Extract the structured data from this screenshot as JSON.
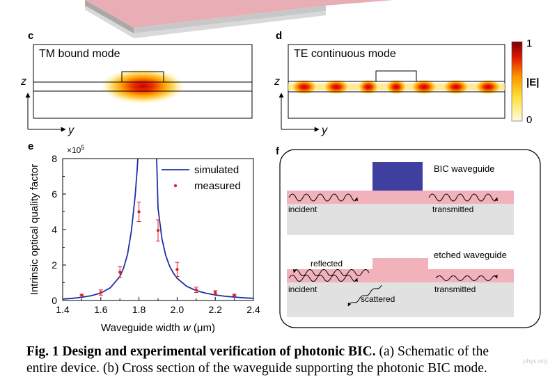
{
  "panel_c": {
    "letter": "c",
    "title": "TM bound mode",
    "z_label": "z",
    "y_label": "y"
  },
  "panel_d": {
    "letter": "d",
    "title": "TE continuous mode",
    "z_label": "z",
    "y_label": "y"
  },
  "colorbar": {
    "max_label": "1",
    "min_label": "0",
    "quantity": "|E|",
    "colors": [
      "#fffbe0",
      "#ffe03a",
      "#ff9a00",
      "#e01a00",
      "#7a0000"
    ]
  },
  "panel_e": {
    "letter": "e",
    "multiplier_base": "×10",
    "multiplier_exp": "5"
  },
  "chart_data": {
    "type": "line",
    "xlabel_main": "Waveguide width ",
    "xlabel_var": "w",
    "xlabel_unit": " (μm)",
    "ylabel": "Intrinsic optical quality factor",
    "xlim": [
      1.4,
      2.4
    ],
    "ylim": [
      0,
      8
    ],
    "x_ticks": [
      "1.4",
      "1.6",
      "1.8",
      "2.0",
      "2.2",
      "2.4"
    ],
    "y_ticks": [
      "0",
      "2",
      "4",
      "6",
      "8"
    ],
    "legend_placement": "top-right",
    "series": [
      {
        "name": "simulated",
        "style": "line",
        "color": "#1f2fa8",
        "x": [
          1.4,
          1.45,
          1.5,
          1.55,
          1.6,
          1.65,
          1.7,
          1.72,
          1.74,
          1.76,
          1.78,
          1.79,
          1.8,
          1.81,
          1.82,
          1.83,
          1.84,
          1.85,
          1.86,
          1.87,
          1.88,
          1.89,
          1.9,
          1.92,
          1.94,
          1.96,
          1.98,
          2.0,
          2.05,
          2.1,
          2.15,
          2.2,
          2.25,
          2.3,
          2.35,
          2.4
        ],
        "y": [
          0.08,
          0.12,
          0.18,
          0.27,
          0.42,
          0.72,
          1.35,
          1.85,
          2.6,
          3.9,
          5.9,
          7.3,
          9.0,
          9.0,
          9.0,
          9.0,
          9.0,
          9.0,
          9.0,
          9.0,
          9.0,
          9.0,
          5.2,
          3.5,
          2.55,
          1.95,
          1.55,
          1.25,
          0.8,
          0.56,
          0.41,
          0.31,
          0.24,
          0.19,
          0.15,
          0.12
        ]
      },
      {
        "name": "measured",
        "style": "points",
        "color": "#e0202a",
        "x": [
          1.5,
          1.6,
          1.7,
          1.8,
          1.9,
          2.0,
          2.1,
          2.2,
          2.3
        ],
        "y": [
          0.3,
          0.45,
          1.6,
          5.0,
          3.95,
          1.75,
          0.6,
          0.45,
          0.3
        ],
        "err": [
          0.05,
          0.15,
          0.3,
          0.55,
          0.6,
          0.4,
          0.15,
          0.1,
          0.05
        ]
      }
    ]
  },
  "panel_f": {
    "letter": "f",
    "bic_label": "BIC waveguide",
    "etched_label": "etched waveguide",
    "incident_label": "incident",
    "transmitted_label": "transmitted",
    "reflected_label": "reflected",
    "scattered_label": "scattered"
  },
  "caption": {
    "bold": "Fig. 1 Design and experimental verification of photonic BIC.",
    "line1_rest": " (a) Schematic of the",
    "line2": "entire device. (b) Cross section of the waveguide supporting the photonic BIC mode."
  },
  "watermark": "phys.org"
}
